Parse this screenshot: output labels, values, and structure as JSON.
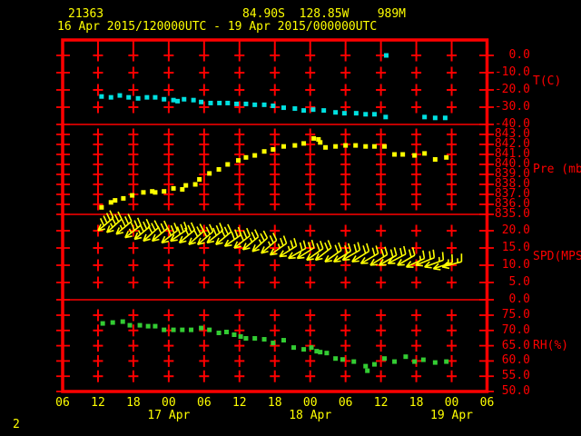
{
  "header": {
    "station_id": "21363",
    "location": "84.90S  128.85W    989M",
    "time_range": "16 Apr 2015/120000UTC - 19 Apr 2015/000000UTC"
  },
  "footer": {
    "page_number": "2"
  },
  "colors": {
    "background": "#000000",
    "axis_red": "#ff0000",
    "text_yellow": "#ffff00",
    "temperature": "#00e0e0",
    "pressure": "#ffff00",
    "wind": "#ffff00",
    "humidity": "#33cc33"
  },
  "x_axis": {
    "range_hours": [
      0,
      72
    ],
    "tick_interval": 6,
    "hour_labels": [
      "06",
      "12",
      "18",
      "00",
      "06",
      "12",
      "18",
      "00",
      "06",
      "12",
      "18",
      "00",
      "06"
    ],
    "date_labels": [
      {
        "label": "17 Apr",
        "t": 18
      },
      {
        "label": "18 Apr",
        "t": 42
      },
      {
        "label": "19 Apr",
        "t": 66
      }
    ]
  },
  "chart_data": [
    {
      "type": "scatter",
      "name": "temperature",
      "label": "T(C)",
      "color": "#00e0e0",
      "ylim": [
        -40,
        0
      ],
      "yticks": [
        0,
        -10,
        -20,
        -30,
        -40
      ],
      "points": [
        [
          6.6,
          -23.8
        ],
        [
          8.2,
          -24.3
        ],
        [
          9.7,
          -23.2
        ],
        [
          11.2,
          -24.3
        ],
        [
          12.8,
          -24.9
        ],
        [
          14.3,
          -24.3
        ],
        [
          15.7,
          -24.3
        ],
        [
          17.2,
          -25.4
        ],
        [
          18.8,
          -25.9
        ],
        [
          19.5,
          -26.5
        ],
        [
          20.6,
          -25.4
        ],
        [
          22.2,
          -25.9
        ],
        [
          23.5,
          -27.0
        ],
        [
          25.1,
          -27.6
        ],
        [
          26.6,
          -27.6
        ],
        [
          28.0,
          -27.6
        ],
        [
          29.5,
          -28.1
        ],
        [
          31.1,
          -28.1
        ],
        [
          32.6,
          -28.6
        ],
        [
          34.2,
          -28.6
        ],
        [
          35.7,
          -29.2
        ],
        [
          37.5,
          -30.3
        ],
        [
          39.4,
          -30.8
        ],
        [
          40.9,
          -31.9
        ],
        [
          42.5,
          -31.4
        ],
        [
          44.3,
          -31.9
        ],
        [
          46.3,
          -33.0
        ],
        [
          47.8,
          -33.5
        ],
        [
          49.8,
          -33.5
        ],
        [
          51.4,
          -34.1
        ],
        [
          52.9,
          -34.1
        ],
        [
          54.8,
          -35.7
        ],
        [
          54.9,
          0.0
        ],
        [
          61.4,
          -35.7
        ],
        [
          63.2,
          -36.2
        ],
        [
          64.9,
          -36.2
        ]
      ]
    },
    {
      "type": "scatter",
      "name": "pressure",
      "label": "Pre (mb)",
      "color": "#ffff00",
      "ylim": [
        835,
        843
      ],
      "yticks": [
        843,
        842,
        841,
        840,
        839,
        838,
        837,
        836,
        835
      ],
      "points": [
        [
          6.6,
          835.7
        ],
        [
          8.2,
          836.2
        ],
        [
          8.9,
          836.4
        ],
        [
          10.3,
          836.6
        ],
        [
          11.8,
          836.9
        ],
        [
          13.7,
          837.2
        ],
        [
          15.2,
          837.3
        ],
        [
          15.7,
          837.2
        ],
        [
          17.2,
          837.3
        ],
        [
          18.8,
          837.6
        ],
        [
          20.3,
          837.5
        ],
        [
          20.9,
          837.9
        ],
        [
          22.5,
          838.0
        ],
        [
          23.2,
          838.5
        ],
        [
          24.9,
          839.1
        ],
        [
          26.5,
          839.5
        ],
        [
          28.0,
          840.0
        ],
        [
          29.8,
          840.4
        ],
        [
          31.1,
          840.7
        ],
        [
          32.6,
          840.9
        ],
        [
          34.2,
          841.3
        ],
        [
          35.7,
          841.5
        ],
        [
          37.5,
          841.8
        ],
        [
          39.4,
          841.9
        ],
        [
          40.9,
          842.1
        ],
        [
          42.6,
          842.6
        ],
        [
          43.4,
          842.5
        ],
        [
          43.7,
          842.2
        ],
        [
          44.6,
          841.7
        ],
        [
          46.3,
          841.8
        ],
        [
          48.0,
          841.9
        ],
        [
          49.7,
          841.9
        ],
        [
          51.4,
          841.8
        ],
        [
          52.9,
          841.8
        ],
        [
          54.6,
          841.8
        ],
        [
          56.3,
          841.0
        ],
        [
          57.7,
          841.0
        ],
        [
          59.7,
          840.9
        ],
        [
          61.4,
          841.1
        ],
        [
          63.2,
          840.5
        ],
        [
          65.1,
          840.7
        ]
      ]
    },
    {
      "type": "wind-barb",
      "name": "wind-speed",
      "label": "SPD(MPS)",
      "color": "#ffff00",
      "ylim": [
        0,
        20
      ],
      "yticks": [
        20,
        15,
        10,
        5,
        0
      ],
      "points_format": [
        "hours",
        "speed_mps",
        "screen_dir_deg"
      ],
      "points": [
        [
          6.0,
          20,
          140
        ],
        [
          7.5,
          19.5,
          138
        ],
        [
          9.1,
          19,
          140
        ],
        [
          10.6,
          18,
          142
        ],
        [
          12.2,
          17.5,
          140
        ],
        [
          13.7,
          17,
          138
        ],
        [
          15.2,
          17,
          140
        ],
        [
          16.8,
          16.5,
          142
        ],
        [
          18.3,
          17,
          145
        ],
        [
          19.8,
          16.5,
          140
        ],
        [
          21.4,
          16,
          138
        ],
        [
          22.9,
          16,
          140
        ],
        [
          24.5,
          16.5,
          142
        ],
        [
          26.0,
          16,
          140
        ],
        [
          27.5,
          15.5,
          145
        ],
        [
          29.1,
          15,
          142
        ],
        [
          30.6,
          14.5,
          140
        ],
        [
          32.2,
          14,
          138
        ],
        [
          33.7,
          13.5,
          140
        ],
        [
          35.2,
          13,
          145
        ],
        [
          36.8,
          12.5,
          148
        ],
        [
          38.3,
          12,
          150
        ],
        [
          39.8,
          12,
          148
        ],
        [
          41.4,
          11.5,
          145
        ],
        [
          42.9,
          11.5,
          142
        ],
        [
          44.5,
          11,
          145
        ],
        [
          46.0,
          11,
          148
        ],
        [
          47.5,
          11.5,
          150
        ],
        [
          49.1,
          11,
          148
        ],
        [
          50.6,
          10.5,
          150
        ],
        [
          52.2,
          10,
          148
        ],
        [
          53.7,
          10,
          150
        ],
        [
          55.2,
          10.5,
          152
        ],
        [
          56.8,
          10,
          150
        ],
        [
          58.3,
          9.5,
          155
        ],
        [
          59.9,
          10,
          158
        ],
        [
          61.4,
          9.5,
          160
        ],
        [
          62.9,
          9,
          162
        ],
        [
          64.4,
          9.5,
          165
        ]
      ]
    },
    {
      "type": "scatter",
      "name": "relative-humidity",
      "label": "RH(%)",
      "color": "#33cc33",
      "ylim": [
        50,
        75
      ],
      "yticks": [
        75,
        70,
        65,
        60,
        55,
        50
      ],
      "points": [
        [
          6.8,
          72.3
        ],
        [
          8.5,
          72.6
        ],
        [
          10.2,
          72.9
        ],
        [
          11.4,
          71.7
        ],
        [
          13.1,
          71.7
        ],
        [
          14.5,
          71.4
        ],
        [
          15.7,
          71.4
        ],
        [
          17.2,
          70.2
        ],
        [
          18.8,
          70.2
        ],
        [
          20.3,
          70.2
        ],
        [
          21.8,
          70.2
        ],
        [
          23.5,
          70.8
        ],
        [
          24.9,
          70.2
        ],
        [
          26.5,
          69.2
        ],
        [
          27.8,
          69.5
        ],
        [
          29.1,
          68.6
        ],
        [
          30.2,
          68.0
        ],
        [
          31.1,
          67.4
        ],
        [
          32.6,
          67.4
        ],
        [
          34.2,
          67.1
        ],
        [
          35.7,
          65.9
        ],
        [
          37.5,
          66.8
        ],
        [
          39.2,
          64.4
        ],
        [
          40.9,
          63.8
        ],
        [
          42.2,
          64.4
        ],
        [
          43.1,
          63.2
        ],
        [
          43.7,
          62.9
        ],
        [
          44.8,
          62.6
        ],
        [
          46.3,
          60.8
        ],
        [
          47.5,
          60.5
        ],
        [
          49.4,
          59.8
        ],
        [
          51.4,
          58.3
        ],
        [
          51.7,
          56.8
        ],
        [
          52.9,
          58.9
        ],
        [
          54.6,
          60.8
        ],
        [
          56.3,
          59.8
        ],
        [
          58.2,
          61.4
        ],
        [
          59.7,
          59.8
        ],
        [
          61.2,
          60.4
        ],
        [
          63.2,
          59.5
        ],
        [
          65.1,
          59.8
        ]
      ]
    }
  ]
}
